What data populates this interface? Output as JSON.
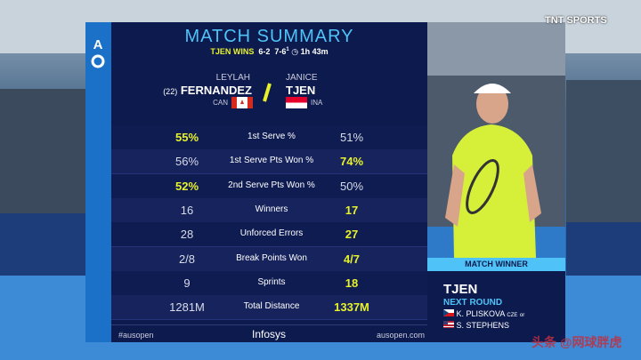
{
  "header": {
    "title": "MATCH SUMMARY",
    "result": "TJEN WINS",
    "set1": "6-2",
    "set2": "7-6",
    "tiebreak": "1",
    "duration": "1h 43m"
  },
  "players": [
    {
      "seed": "(22)",
      "first": "LEYLAH",
      "last": "FERNANDEZ",
      "country": "CAN"
    },
    {
      "first": "JANICE",
      "last": "TJEN",
      "country": "INA"
    }
  ],
  "table": {
    "rows": [
      {
        "left": "55%",
        "label": "1st Serve %",
        "right": "51%",
        "winner": "left"
      },
      {
        "left": "56%",
        "label": "1st Serve Pts Won %",
        "right": "74%",
        "winner": "right"
      },
      {
        "left": "52%",
        "label": "2nd Serve Pts Won %",
        "right": "50%",
        "winner": "left"
      },
      {
        "left": "16",
        "label": "Winners",
        "right": "17",
        "winner": "right"
      },
      {
        "left": "28",
        "label": "Unforced Errors",
        "right": "27",
        "winner": "right"
      },
      {
        "left": "2/8",
        "label": "Break Points Won",
        "right": "4/7",
        "winner": "right"
      },
      {
        "left": "9",
        "label": "Sprints",
        "right": "18",
        "winner": "right"
      },
      {
        "left": "1281M",
        "label": "Total Distance",
        "right": "1337M",
        "winner": "right"
      }
    ]
  },
  "footer": {
    "hashtag": "#ausopen",
    "sponsor": "Infosys",
    "site": "ausopen.com"
  },
  "broadcaster": "TNT SPORTS",
  "winner_panel": {
    "banner": "MATCH WINNER",
    "name": "TJEN",
    "next": "NEXT ROUND",
    "opponents": [
      {
        "name": "K. PLISKOVA",
        "country": "CZE",
        "joiner": "or"
      },
      {
        "name": "S. STEPHENS"
      }
    ]
  },
  "watermark": "头条 @网球胖虎"
}
